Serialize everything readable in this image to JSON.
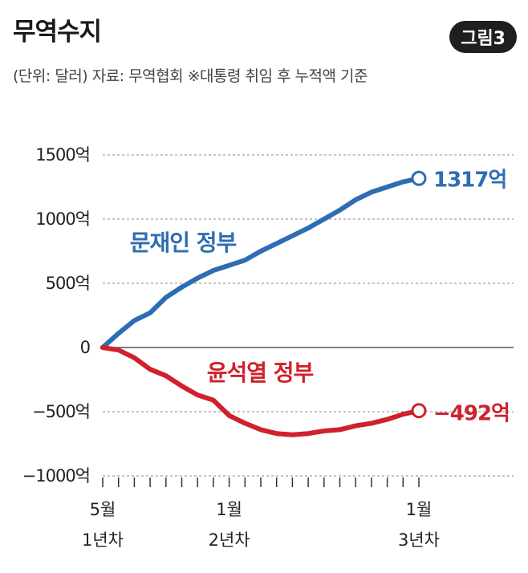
{
  "header": {
    "title": "무역수지",
    "badge": "그림3",
    "subtitle": "(단위: 달러) 자료: 무역협회 ※대통령 취임 후 누적액 기준"
  },
  "colors": {
    "moon": "#2e6db3",
    "yoon": "#d0212c",
    "grid": "#888888"
  },
  "chart_data": {
    "type": "line",
    "title": "무역수지",
    "xlabel": "",
    "ylabel": "",
    "ylim": [
      -1000,
      1500
    ],
    "y_ticks": [
      {
        "value": 1500,
        "label": "1500억"
      },
      {
        "value": 1000,
        "label": "1000억"
      },
      {
        "value": 500,
        "label": "500억"
      },
      {
        "value": 0,
        "label": "0"
      },
      {
        "value": -500,
        "label": "−500억"
      },
      {
        "value": -1000,
        "label": "−1000억"
      }
    ],
    "x_tick_count": 21,
    "x_labels": [
      {
        "index": 0,
        "line1": "5월",
        "line2": "1년차"
      },
      {
        "index": 8,
        "line1": "1월",
        "line2": "2년차"
      },
      {
        "index": 20,
        "line1": "1월",
        "line2": "3년차"
      }
    ],
    "series": [
      {
        "name": "문재인 정부",
        "end_label": "1317억",
        "x": [
          0,
          1,
          2,
          3,
          4,
          5,
          6,
          7,
          8,
          9,
          10,
          11,
          12,
          13,
          14,
          15,
          16,
          17,
          18,
          19,
          20
        ],
        "values": [
          0,
          110,
          210,
          270,
          390,
          470,
          540,
          600,
          640,
          680,
          750,
          810,
          870,
          930,
          1000,
          1070,
          1150,
          1210,
          1250,
          1290,
          1317
        ]
      },
      {
        "name": "윤석열 정부",
        "end_label": "−492억",
        "x": [
          0,
          1,
          2,
          3,
          4,
          5,
          6,
          7,
          8,
          9,
          10,
          11,
          12,
          13,
          14,
          15,
          16,
          17,
          18,
          19,
          20
        ],
        "values": [
          0,
          -20,
          -80,
          -170,
          -220,
          -300,
          -370,
          -410,
          -530,
          -590,
          -640,
          -670,
          -680,
          -670,
          -650,
          -640,
          -610,
          -590,
          -560,
          -520,
          -492
        ]
      }
    ]
  }
}
